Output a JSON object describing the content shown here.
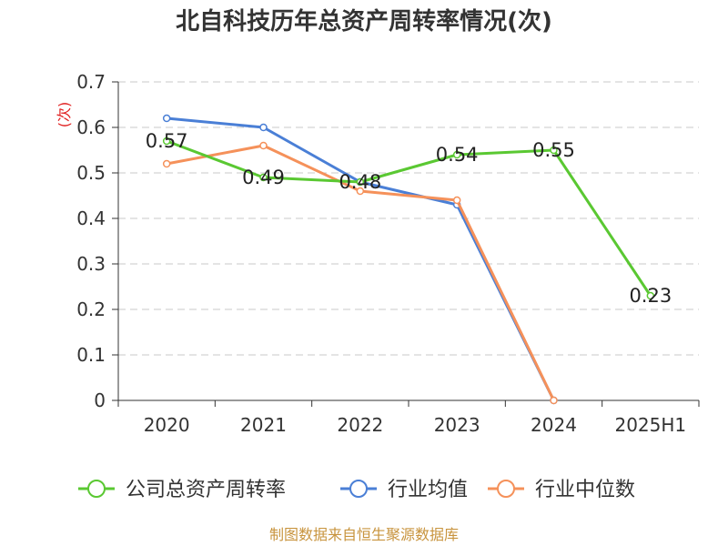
{
  "title": "北自科技历年总资产周转率情况(次)",
  "footer": "制图数据来自恒生聚源数据库",
  "chart_data": {
    "type": "line",
    "title": "北自科技历年总资产周转率情况(次)",
    "ylabel": "(次)",
    "xlabel": "",
    "categories": [
      "2020",
      "2021",
      "2022",
      "2023",
      "2024",
      "2025H1"
    ],
    "ylim": [
      0,
      0.7
    ],
    "yticks": [
      "0",
      "0.1",
      "0.2",
      "0.3",
      "0.4",
      "0.5",
      "0.6",
      "0.7"
    ],
    "grid": true,
    "legend_position": "bottom",
    "series": [
      {
        "name": "公司总资产周转率",
        "color": "#5ac832",
        "values": [
          0.57,
          0.49,
          0.48,
          0.54,
          0.55,
          0.23
        ],
        "labels": [
          "0.57",
          "0.49",
          "0.48",
          "0.54",
          "0.55",
          "0.23"
        ]
      },
      {
        "name": "行业均值",
        "color": "#4a7fd6",
        "values": [
          0.62,
          0.6,
          0.48,
          0.43,
          0,
          null
        ]
      },
      {
        "name": "行业中位数",
        "color": "#f5915a",
        "values": [
          0.52,
          0.56,
          0.46,
          0.44,
          0,
          null
        ]
      }
    ]
  }
}
